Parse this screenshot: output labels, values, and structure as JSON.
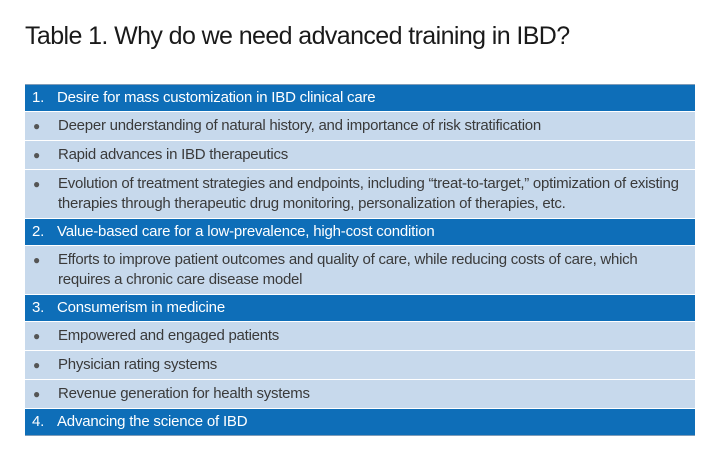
{
  "title": "Table 1. Why do we need advanced training in IBD?",
  "colors": {
    "header_bg": "#0e6eb8",
    "row_bg": "#c7d9ec"
  },
  "sections": [
    {
      "number": "1.",
      "heading": "Desire for mass customization in IBD clinical care",
      "bullets": [
        "Deeper understanding of natural history, and importance of risk stratification",
        "Rapid advances in IBD therapeutics",
        "Evolution of treatment strategies and endpoints, including “treat-to-target,” optimization of existing therapies through therapeutic drug monitoring, personalization of therapies, etc."
      ]
    },
    {
      "number": "2.",
      "heading": "Value-based care for a low-prevalence, high-cost condition",
      "bullets": [
        "Efforts to improve patient outcomes and quality of care, while reducing costs of care, which requires a chronic care disease model"
      ]
    },
    {
      "number": "3.",
      "heading": "Consumerism in medicine",
      "bullets": [
        "Empowered and engaged patients",
        "Physician rating systems",
        "Revenue generation for health systems"
      ]
    },
    {
      "number": "4.",
      "heading": "Advancing the science of IBD",
      "bullets": []
    }
  ],
  "bullet_glyph": "●"
}
